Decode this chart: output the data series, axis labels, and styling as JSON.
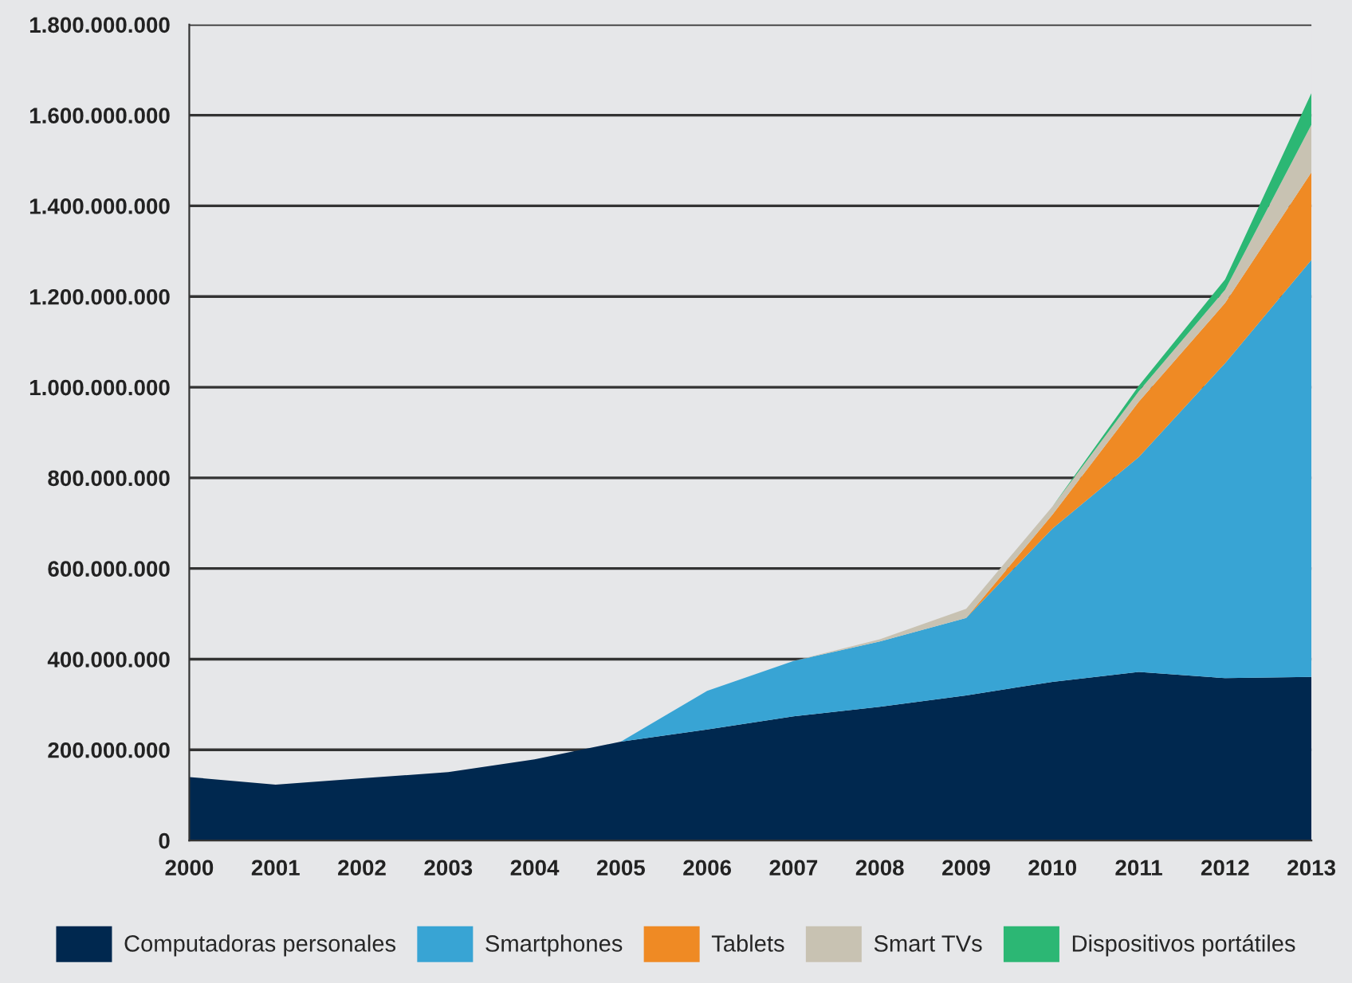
{
  "chart_data": {
    "type": "area",
    "stacked": true,
    "x": [
      2000,
      2001,
      2002,
      2003,
      2004,
      2005,
      2006,
      2007,
      2008,
      2009,
      2010,
      2011,
      2012,
      2013
    ],
    "series": [
      {
        "name": "Computadoras personales",
        "color": "#00284f",
        "values": [
          140000000,
          123000000,
          137000000,
          151000000,
          179000000,
          218000000,
          245000000,
          274000000,
          295000000,
          320000000,
          350000000,
          372000000,
          358000000,
          361000000
        ]
      },
      {
        "name": "Smartphones",
        "color": "#38a4d4",
        "values": [
          0,
          0,
          0,
          0,
          0,
          0,
          85000000,
          122000000,
          144000000,
          171000000,
          338000000,
          474000000,
          695000000,
          920000000
        ]
      },
      {
        "name": "Tablets",
        "color": "#ef8a24",
        "values": [
          0,
          0,
          0,
          0,
          0,
          0,
          0,
          0,
          0,
          0,
          31000000,
          122000000,
          133000000,
          193000000
        ]
      },
      {
        "name": "Smart TVs",
        "color": "#c8c2b2",
        "values": [
          0,
          0,
          0,
          0,
          0,
          0,
          0,
          0,
          5000000,
          20000000,
          18000000,
          23000000,
          29000000,
          105000000
        ]
      },
      {
        "name": "Dispositivos portátiles",
        "color": "#2cb774",
        "values": [
          0,
          0,
          0,
          0,
          0,
          0,
          0,
          0,
          0,
          0,
          0,
          12000000,
          23000000,
          70000000
        ]
      }
    ],
    "xlim": [
      2000,
      2013
    ],
    "xticks": [
      2000,
      2001,
      2002,
      2003,
      2004,
      2005,
      2006,
      2007,
      2008,
      2009,
      2010,
      2011,
      2012,
      2013
    ],
    "ylim": [
      0,
      1800000000
    ],
    "yticks": [
      0,
      {
        "value": 200000000,
        "label": "200.000.000"
      },
      {
        "value": 400000000,
        "label": "400.000.000"
      },
      {
        "value": 600000000,
        "label": "600.000.000"
      },
      {
        "value": 800000000,
        "label": "800.000.000"
      },
      {
        "value": 1000000000,
        "label": "1.000.000.000"
      },
      {
        "value": 1200000000,
        "label": "1.200.000.000"
      },
      {
        "value": 1400000000,
        "label": "1.400.000.000"
      },
      {
        "value": 1600000000,
        "label": "1.600.000.000"
      },
      {
        "value": 1800000000,
        "label": "1.800.000.000"
      }
    ],
    "grid": "y",
    "legend": "bottom"
  }
}
